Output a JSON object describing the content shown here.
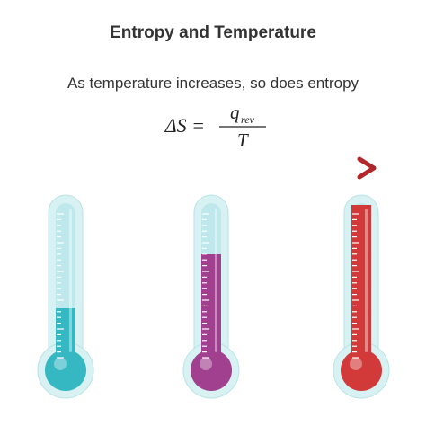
{
  "header": {
    "title": "Entropy and Temperature",
    "subtitle": "As temperature increases, so does entropy"
  },
  "formula": {
    "lhs": "ΔS =",
    "numerator": "q",
    "numerator_subscript": "rev",
    "denominator": "T"
  }
}
